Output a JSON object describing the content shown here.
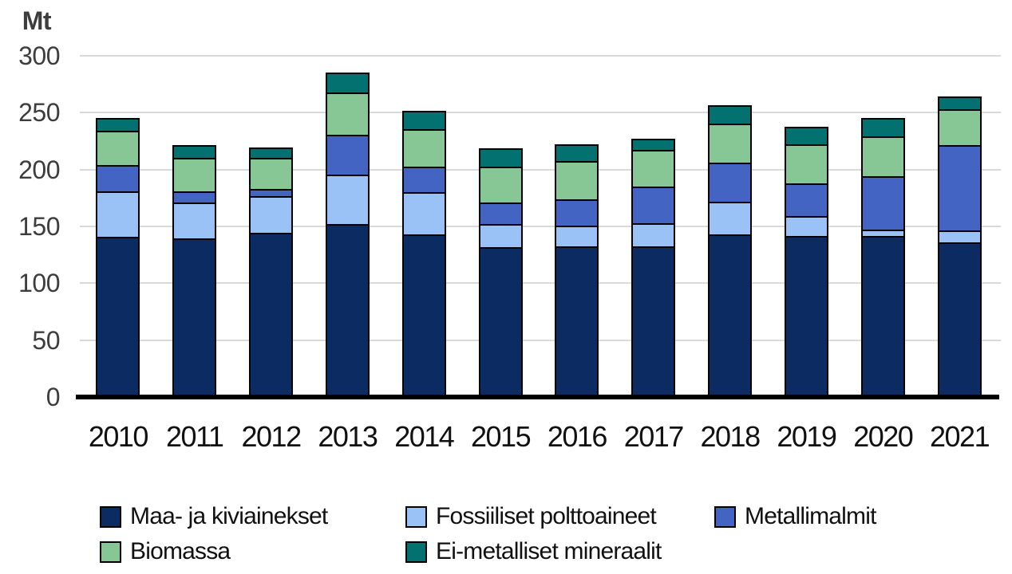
{
  "chart_data": {
    "type": "bar",
    "stacked": true,
    "title": "",
    "ylabel": "Mt",
    "xlabel": "",
    "ylim": [
      0,
      300
    ],
    "yticks": [
      0,
      50,
      100,
      150,
      200,
      250,
      300
    ],
    "grid": true,
    "legend_position": "bottom",
    "categories": [
      "2010",
      "2011",
      "2012",
      "2013",
      "2014",
      "2015",
      "2016",
      "2017",
      "2018",
      "2019",
      "2020",
      "2021"
    ],
    "series": [
      {
        "name": "Maa- ja kiviainekset",
        "color": "#0d2b63",
        "values": [
          142,
          141,
          146,
          153,
          144,
          133,
          134,
          134,
          144,
          143,
          143,
          137
        ]
      },
      {
        "name": "Fossiiliset polttoaineet",
        "color": "#9ac2f7",
        "values": [
          40,
          31,
          32,
          43,
          37,
          20,
          17,
          19,
          28,
          17,
          4,
          9
        ]
      },
      {
        "name": "Metallimalmit",
        "color": "#4464c4",
        "values": [
          22,
          9,
          5,
          35,
          22,
          18,
          23,
          32,
          34,
          28,
          47,
          76
        ]
      },
      {
        "name": "Biomassa",
        "color": "#87c795",
        "values": [
          30,
          29,
          27,
          36,
          32,
          31,
          33,
          32,
          34,
          34,
          35,
          31
        ]
      },
      {
        "name": "Ei-metalliset mineraalit",
        "color": "#027170",
        "values": [
          10,
          10,
          8,
          17,
          15,
          15,
          14,
          9,
          15,
          14,
          15,
          10
        ]
      }
    ],
    "colors": {
      "gridline": "#d9d9d9",
      "axis_line": "#000000",
      "tick_text": "#3d3d3d",
      "label_text": "#111111",
      "bar_border": "#000000",
      "background": "#ffffff"
    }
  }
}
